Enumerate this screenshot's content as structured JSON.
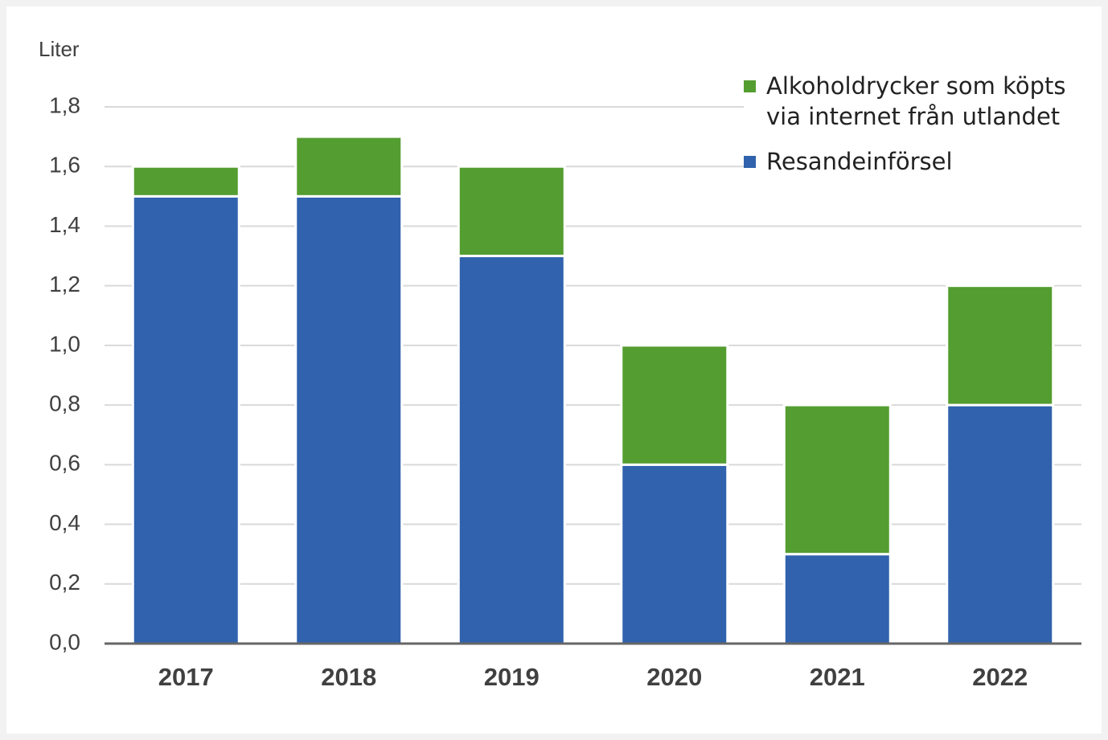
{
  "chart_data": {
    "type": "stacked_bar",
    "y_axis_label": "Liter",
    "categories": [
      "2017",
      "2018",
      "2019",
      "2020",
      "2021",
      "2022"
    ],
    "series": [
      {
        "name": "Resandeinförsel",
        "color": "#3062ad",
        "values": [
          1.5,
          1.5,
          1.3,
          0.6,
          0.3,
          0.8
        ]
      },
      {
        "name": "Alkoholdrycker som köpts via internet från utlandet",
        "color": "#549d31",
        "values": [
          0.1,
          0.2,
          0.3,
          0.4,
          0.5,
          0.4
        ]
      }
    ],
    "ylim": [
      0,
      1.8
    ],
    "yticks": [
      {
        "value": 0,
        "label": "0,0"
      },
      {
        "value": 0.2,
        "label": "0,2"
      },
      {
        "value": 0.4,
        "label": "0,4"
      },
      {
        "value": 0.6,
        "label": "0,6"
      },
      {
        "value": 0.8,
        "label": "0,8"
      },
      {
        "value": 1.0,
        "label": "1,0"
      },
      {
        "value": 1.2,
        "label": "1,2"
      },
      {
        "value": 1.4,
        "label": "1,4"
      },
      {
        "value": 1.6,
        "label": "1,6"
      },
      {
        "value": 1.8,
        "label": "1,8"
      }
    ],
    "grid": true,
    "legend": "top-right"
  }
}
